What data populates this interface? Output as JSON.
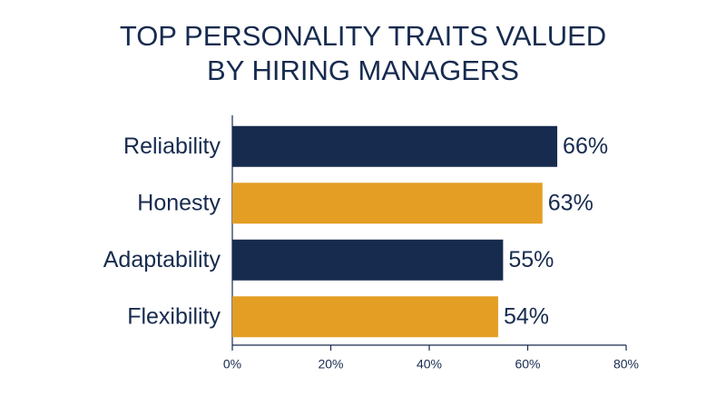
{
  "chart_data": {
    "type": "bar",
    "orientation": "horizontal",
    "title": [
      "TOP PERSONALITY TRAITS VALUED",
      "BY HIRING MANAGERS"
    ],
    "categories": [
      "Reliability",
      "Honesty",
      "Adaptability",
      "Flexibility"
    ],
    "values": [
      66,
      63,
      55,
      54
    ],
    "value_labels": [
      "66%",
      "63%",
      "55%",
      "54%"
    ],
    "colors": [
      "#172b4f",
      "#e39e23",
      "#172b4f",
      "#e39e23"
    ],
    "xlim": [
      0,
      80
    ],
    "xticks": [
      {
        "value": 0,
        "label": "0%"
      },
      {
        "value": 20,
        "label": "20%"
      },
      {
        "value": 40,
        "label": "40%"
      },
      {
        "value": 60,
        "label": "60%"
      },
      {
        "value": 80,
        "label": "80%"
      }
    ],
    "grid": false
  }
}
